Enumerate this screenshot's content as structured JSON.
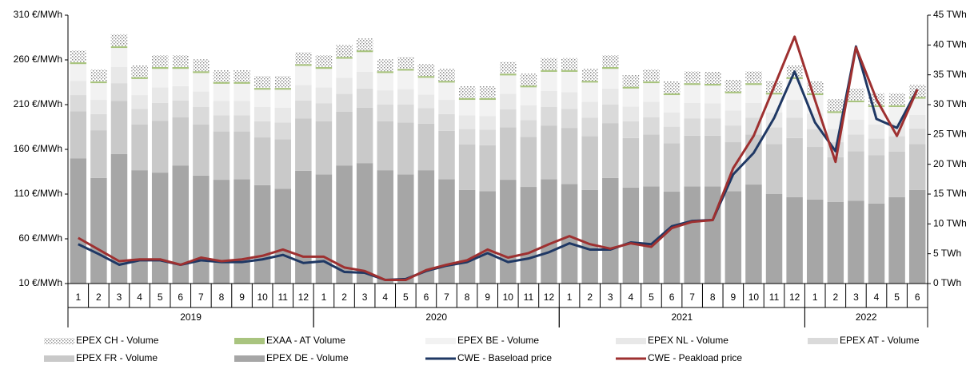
{
  "chart_data": {
    "type": "bar",
    "categories": [
      "1",
      "2",
      "3",
      "4",
      "5",
      "6",
      "7",
      "8",
      "9",
      "10",
      "11",
      "12",
      "1",
      "2",
      "3",
      "4",
      "5",
      "6",
      "7",
      "8",
      "9",
      "10",
      "11",
      "12",
      "1",
      "2",
      "3",
      "4",
      "5",
      "6",
      "7",
      "8",
      "9",
      "10",
      "11",
      "12",
      "1",
      "2",
      "3",
      "4",
      "5",
      "6"
    ],
    "category_groups": [
      {
        "label": "2019",
        "size": 12
      },
      {
        "label": "2020",
        "size": 12
      },
      {
        "label": "2021",
        "size": 12
      },
      {
        "label": "2022",
        "size": 6
      }
    ],
    "ylim": [
      10,
      310
    ],
    "yticks": [
      {
        "value": 10,
        "label": "10 €/MWh"
      },
      {
        "value": 60,
        "label": "60 €/MWh"
      },
      {
        "value": 110,
        "label": "110 €/MWh"
      },
      {
        "value": 160,
        "label": "160 €/MWh"
      },
      {
        "value": 210,
        "label": "210 €/MWh"
      },
      {
        "value": 260,
        "label": "260 €/MWh"
      },
      {
        "value": 310,
        "label": "310 €/MWh"
      }
    ],
    "y2lim": [
      0,
      45
    ],
    "y2ticks": [
      {
        "value": 0,
        "label": "0 TWh"
      },
      {
        "value": 5,
        "label": "5 TWh"
      },
      {
        "value": 10,
        "label": "10 TWh"
      },
      {
        "value": 15,
        "label": "15 TWh"
      },
      {
        "value": 20,
        "label": "20 TWh"
      },
      {
        "value": 25,
        "label": "25 TWh"
      },
      {
        "value": 30,
        "label": "30 TWh"
      },
      {
        "value": 35,
        "label": "35 TWh"
      },
      {
        "value": 40,
        "label": "40 TWh"
      },
      {
        "value": 45,
        "label": "45 TWh"
      }
    ],
    "series": [
      {
        "name": "EPEX CH - Volume",
        "type": "bar",
        "axis": "y2",
        "color": "hatch",
        "values": [
          2.0,
          2.0,
          2.0,
          2.0,
          2.0,
          2.0,
          2.0,
          2.0,
          2.0,
          2.0,
          2.0,
          2.0,
          2.0,
          2.0,
          2.0,
          2.0,
          2.0,
          2.0,
          2.0,
          2.0,
          2.0,
          2.0,
          2.0,
          2.0,
          2.0,
          2.0,
          2.0,
          2.0,
          2.0,
          2.0,
          2.0,
          2.0,
          2.0,
          2.0,
          2.0,
          2.0,
          2.0,
          2.0,
          2.0,
          2.0,
          2.0,
          2.0
        ]
      },
      {
        "name": "EXAA - AT Volume",
        "type": "bar",
        "axis": "y2",
        "color": "#a9c47f",
        "values": [
          0.3,
          0.3,
          0.3,
          0.3,
          0.3,
          0.3,
          0.3,
          0.3,
          0.3,
          0.3,
          0.3,
          0.3,
          0.3,
          0.3,
          0.3,
          0.3,
          0.3,
          0.3,
          0.3,
          0.3,
          0.3,
          0.3,
          0.3,
          0.3,
          0.3,
          0.3,
          0.3,
          0.3,
          0.3,
          0.3,
          0.3,
          0.3,
          0.3,
          0.3,
          0.3,
          0.3,
          0.3,
          0.3,
          0.3,
          0.3,
          0.3,
          0.3
        ]
      },
      {
        "name": "EPEX BE - Volume",
        "type": "bar",
        "axis": "y2",
        "color": "#f2f2f2",
        "values": [
          2.8,
          2.8,
          3.2,
          2.7,
          3.1,
          2.9,
          3.1,
          2.9,
          2.9,
          2.9,
          3.0,
          3.2,
          3.1,
          3.2,
          3.3,
          2.9,
          3.1,
          2.8,
          2.9,
          2.6,
          2.7,
          3.1,
          3.0,
          3.2,
          3.4,
          3.2,
          3.3,
          3.0,
          3.1,
          2.9,
          3.0,
          3.0,
          2.9,
          3.0,
          3.0,
          3.5,
          3.1,
          2.7,
          2.9,
          2.9,
          2.6,
          2.7
        ]
      },
      {
        "name": "EPEX NL - Volume",
        "type": "bar",
        "axis": "y2",
        "color": "#e8e8e8",
        "values": [
          2.4,
          2.4,
          2.7,
          2.3,
          2.6,
          2.4,
          2.6,
          2.4,
          2.4,
          2.4,
          2.5,
          2.6,
          2.7,
          2.7,
          2.8,
          2.4,
          2.6,
          2.3,
          2.4,
          2.3,
          2.3,
          2.6,
          2.5,
          2.7,
          2.8,
          2.7,
          2.7,
          2.5,
          2.6,
          2.4,
          2.6,
          2.5,
          2.5,
          2.5,
          2.5,
          3.0,
          2.6,
          2.2,
          2.5,
          2.4,
          2.3,
          2.3
        ]
      },
      {
        "name": "EPEX AT - Volume",
        "type": "bar",
        "axis": "y2",
        "color": "#dadada",
        "values": [
          2.7,
          2.7,
          3.0,
          2.6,
          3.0,
          2.8,
          2.9,
          2.7,
          2.7,
          2.7,
          2.8,
          3.0,
          3.0,
          3.0,
          3.2,
          2.8,
          3.0,
          2.6,
          2.8,
          2.6,
          2.6,
          3.0,
          2.8,
          3.1,
          3.2,
          3.1,
          3.1,
          2.8,
          2.9,
          2.8,
          2.9,
          2.9,
          2.8,
          2.8,
          2.8,
          3.4,
          3.0,
          2.5,
          2.8,
          2.8,
          2.6,
          2.6
        ]
      },
      {
        "name": "EPEX FR - Volume",
        "type": "bar",
        "axis": "y2",
        "color": "#c9c9c9",
        "values": [
          7.9,
          8.0,
          8.9,
          7.7,
          8.7,
          8.1,
          8.6,
          8.1,
          8.0,
          8.0,
          8.3,
          8.8,
          8.9,
          9.0,
          9.3,
          8.2,
          8.7,
          7.8,
          8.1,
          7.6,
          7.7,
          8.8,
          8.4,
          9.0,
          9.4,
          9.0,
          9.2,
          8.3,
          8.7,
          8.1,
          8.5,
          8.5,
          8.2,
          8.4,
          8.4,
          9.9,
          8.8,
          7.5,
          8.3,
          8.1,
          7.6,
          7.7
        ]
      },
      {
        "name": "EPEX DE - Volume",
        "type": "bar",
        "axis": "y2",
        "color": "#a6a6a6",
        "values": [
          21.0,
          17.7,
          21.7,
          19.0,
          18.6,
          19.8,
          18.1,
          17.4,
          17.5,
          16.5,
          15.9,
          18.9,
          18.3,
          19.8,
          20.2,
          19.0,
          18.3,
          19.0,
          17.5,
          15.7,
          15.5,
          17.4,
          16.2,
          17.5,
          16.7,
          15.7,
          17.7,
          16.1,
          16.3,
          15.4,
          16.3,
          16.3,
          15.5,
          16.6,
          15.0,
          14.5,
          14.1,
          13.7,
          13.9,
          13.4,
          14.5,
          15.7
        ]
      },
      {
        "name": "CWE - Baseload price",
        "type": "line",
        "axis": "y",
        "color": "#1f3864",
        "values": [
          54,
          43,
          31,
          36,
          36,
          31,
          36,
          34,
          34,
          37,
          42,
          33,
          35,
          23,
          22,
          14,
          15,
          24,
          30,
          34,
          44,
          34,
          38,
          45,
          55,
          48,
          48,
          56,
          54,
          74,
          80,
          81,
          132,
          156,
          195,
          247,
          190,
          158,
          275,
          194,
          184,
          227
        ]
      },
      {
        "name": "CWE - Peakload price",
        "type": "line",
        "axis": "y",
        "color": "#9e3030",
        "values": [
          61,
          48,
          35,
          37,
          37,
          31,
          39,
          35,
          37,
          41,
          48,
          40,
          40,
          28,
          24,
          14,
          14,
          25,
          31,
          36,
          48,
          39,
          44,
          54,
          63,
          54,
          49,
          55,
          51,
          72,
          79,
          81,
          139,
          175,
          230,
          286,
          215,
          146,
          274,
          216,
          175,
          227
        ]
      }
    ],
    "legend": "bottom"
  }
}
